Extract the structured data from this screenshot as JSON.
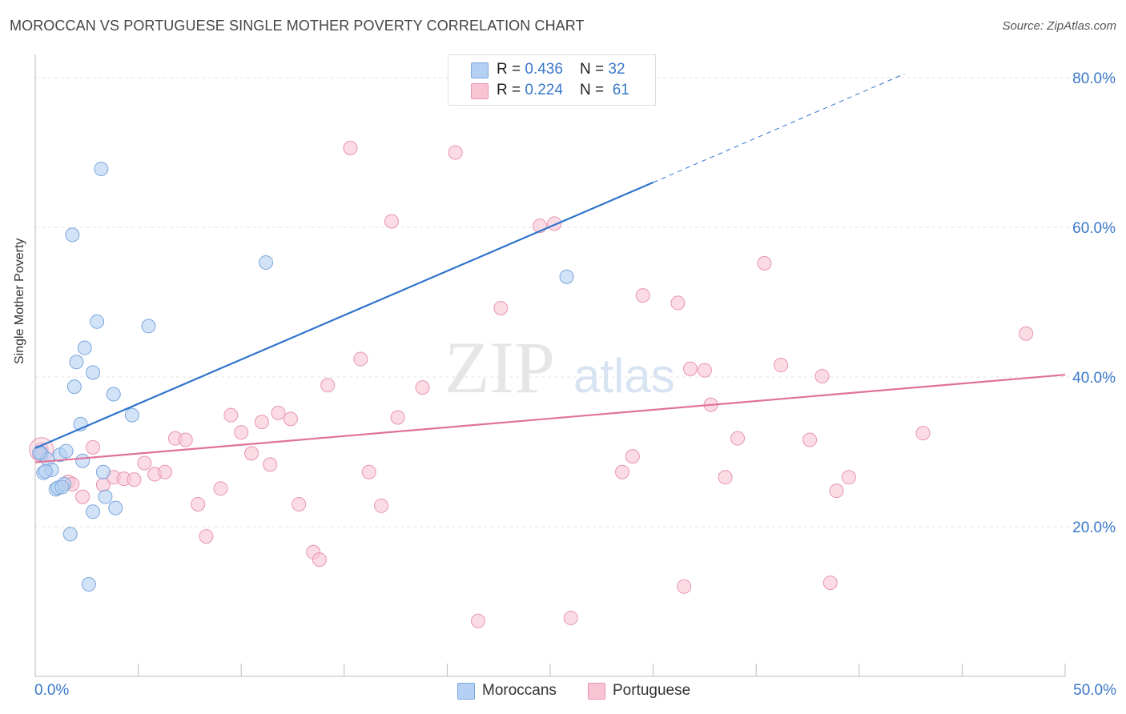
{
  "title": "MOROCCAN VS PORTUGUESE SINGLE MOTHER POVERTY CORRELATION CHART",
  "source": "Source: ZipAtlas.com",
  "colors": {
    "blue_fill": "#b5d0f2",
    "blue_stroke": "#7aa6dc",
    "blue_line": "#2f74cc",
    "pink_fill": "#f8c4d3",
    "pink_stroke": "#e795b0",
    "pink_line": "#e0729a",
    "axis_label": "#3a78c9",
    "grid": "#e3e3e3"
  },
  "legend_top": {
    "rows": [
      {
        "r_label": "R = ",
        "r_value": "0.436",
        "n_label": "N = ",
        "n_value": "32",
        "series": "blue"
      },
      {
        "r_label": "R = ",
        "r_value": "0.224",
        "n_label": "N = ",
        "n_value": "61",
        "series": "pink"
      }
    ]
  },
  "legend_bottom": [
    "Moroccans",
    "Portuguese"
  ],
  "watermark": {
    "zip": "ZIP",
    "atlas": "atlas"
  },
  "chart_data": {
    "type": "scatter",
    "title": "MOROCCAN VS PORTUGUESE SINGLE MOTHER POVERTY CORRELATION CHART",
    "xlabel": "",
    "ylabel": "Single Mother Poverty",
    "xlim": [
      0,
      50
    ],
    "ylim": [
      0,
      80
    ],
    "x_tick_labels": [
      "0.0%",
      "50.0%"
    ],
    "y_tick_labels": [
      "20.0%",
      "40.0%",
      "60.0%",
      "80.0%"
    ],
    "y_ticks": [
      20,
      40,
      60,
      80
    ],
    "grid": true,
    "legend_position": "top-center",
    "series": [
      {
        "name": "Moroccans",
        "color": "#b5d0f2",
        "r": 0.436,
        "n": 32,
        "trend": {
          "x0": 0,
          "y0": 30.5,
          "x1": 30,
          "y1": 66,
          "dashed_to_x": 42.2,
          "dashed_to_y": 80.5
        },
        "points": [
          [
            0.3,
            29.8
          ],
          [
            0.4,
            27.2
          ],
          [
            0.6,
            29.0
          ],
          [
            0.8,
            27.6
          ],
          [
            1.0,
            25.0
          ],
          [
            1.1,
            25.2
          ],
          [
            1.2,
            29.6
          ],
          [
            1.4,
            25.7
          ],
          [
            1.5,
            30.1
          ],
          [
            1.7,
            19.0
          ],
          [
            2.0,
            42.0
          ],
          [
            1.9,
            38.7
          ],
          [
            2.2,
            33.7
          ],
          [
            2.3,
            28.8
          ],
          [
            2.4,
            43.9
          ],
          [
            2.8,
            40.6
          ],
          [
            3.0,
            47.4
          ],
          [
            2.8,
            22.0
          ],
          [
            3.3,
            27.3
          ],
          [
            3.4,
            24.0
          ],
          [
            2.6,
            12.3
          ],
          [
            3.2,
            67.8
          ],
          [
            3.8,
            37.7
          ],
          [
            3.9,
            22.5
          ],
          [
            4.7,
            34.9
          ],
          [
            5.5,
            46.8
          ],
          [
            1.8,
            59.0
          ],
          [
            11.2,
            55.3
          ],
          [
            25.8,
            53.4
          ],
          [
            0.2,
            29.9
          ],
          [
            0.5,
            27.4
          ],
          [
            1.3,
            25.3
          ]
        ]
      },
      {
        "name": "Portuguese",
        "color": "#f8c4d3",
        "r": 0.224,
        "n": 61,
        "trend": {
          "x0": 0,
          "y0": 28.6,
          "x1": 50,
          "y1": 40.3
        },
        "points": [
          [
            0.3,
            30.3
          ],
          [
            1.6,
            26.0
          ],
          [
            1.8,
            25.7
          ],
          [
            2.3,
            24.0
          ],
          [
            2.8,
            30.6
          ],
          [
            3.3,
            25.6
          ],
          [
            3.8,
            26.6
          ],
          [
            4.3,
            26.4
          ],
          [
            4.8,
            26.3
          ],
          [
            5.3,
            28.5
          ],
          [
            5.8,
            27.0
          ],
          [
            6.3,
            27.3
          ],
          [
            6.8,
            31.8
          ],
          [
            7.3,
            31.6
          ],
          [
            7.9,
            23.0
          ],
          [
            8.3,
            18.7
          ],
          [
            9.0,
            25.1
          ],
          [
            9.5,
            34.9
          ],
          [
            10.0,
            32.6
          ],
          [
            10.5,
            29.8
          ],
          [
            11.0,
            34.0
          ],
          [
            11.4,
            28.3
          ],
          [
            11.8,
            35.2
          ],
          [
            12.4,
            34.4
          ],
          [
            12.8,
            23.0
          ],
          [
            13.5,
            16.6
          ],
          [
            13.8,
            15.6
          ],
          [
            14.2,
            38.9
          ],
          [
            15.8,
            42.4
          ],
          [
            16.2,
            27.3
          ],
          [
            16.8,
            22.8
          ],
          [
            17.3,
            60.8
          ],
          [
            17.6,
            34.6
          ],
          [
            18.8,
            38.6
          ],
          [
            15.3,
            70.6
          ],
          [
            20.4,
            70.0
          ],
          [
            21.5,
            7.4
          ],
          [
            22.6,
            49.2
          ],
          [
            24.5,
            60.2
          ],
          [
            25.2,
            60.5
          ],
          [
            26.0,
            7.8
          ],
          [
            28.5,
            27.3
          ],
          [
            29.0,
            29.4
          ],
          [
            29.5,
            50.9
          ],
          [
            31.2,
            49.9
          ],
          [
            31.5,
            12.0
          ],
          [
            31.8,
            41.1
          ],
          [
            32.5,
            40.9
          ],
          [
            32.8,
            36.3
          ],
          [
            33.5,
            26.6
          ],
          [
            34.1,
            31.8
          ],
          [
            35.4,
            55.2
          ],
          [
            36.2,
            41.6
          ],
          [
            37.6,
            31.6
          ],
          [
            38.2,
            40.1
          ],
          [
            38.6,
            12.5
          ],
          [
            38.9,
            24.8
          ],
          [
            39.5,
            26.6
          ],
          [
            43.1,
            32.5
          ],
          [
            48.1,
            45.8
          ],
          [
            0.2,
            29.7
          ]
        ]
      }
    ]
  }
}
